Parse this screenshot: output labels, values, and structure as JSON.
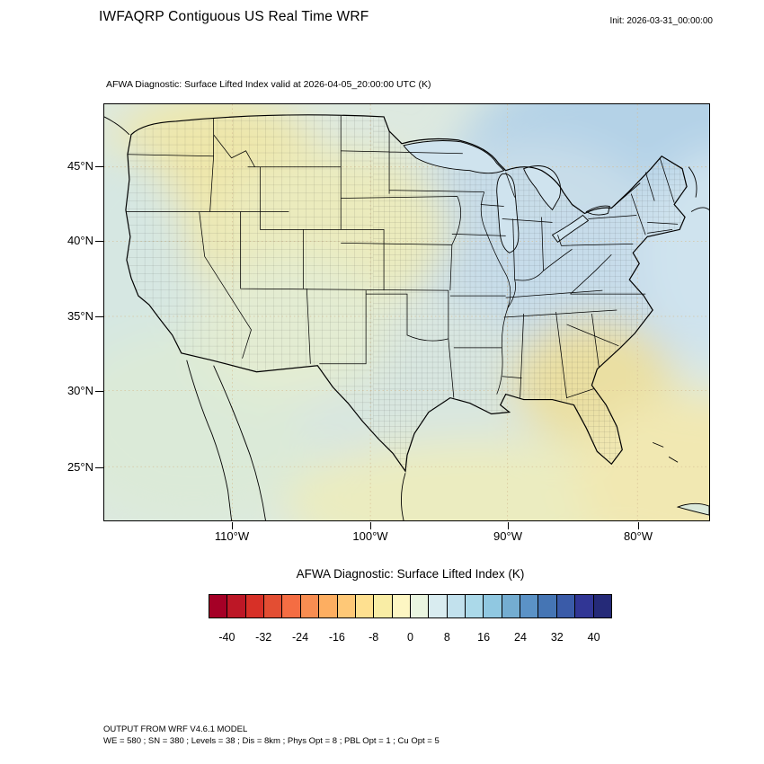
{
  "header": {
    "title": "IWFAQRP Contiguous US Real Time WRF",
    "init_label": "Init: 2026-03-31_00:00:00"
  },
  "map": {
    "subtitle": "AFWA Diagnostic: Surface Lifted Index valid at 2026-04-05_20:00:00 UTC   (K)",
    "y_tick_labels": [
      "45°N",
      "40°N",
      "35°N",
      "30°N",
      "25°N"
    ],
    "x_tick_labels": [
      "110°W",
      "100°W",
      "90°W",
      "80°W"
    ]
  },
  "colorbar": {
    "title": "AFWA Diagnostic: Surface Lifted Index  (K)",
    "tick_labels": [
      "-40",
      "-32",
      "-24",
      "-16",
      "-8",
      "0",
      "8",
      "16",
      "24",
      "32",
      "40"
    ],
    "colors": [
      "#a50026",
      "#bd1726",
      "#d73027",
      "#e34e33",
      "#f46d43",
      "#f88d51",
      "#fdae61",
      "#fec877",
      "#fee090",
      "#f9eda5",
      "#fdf6c3",
      "#eaf5e0",
      "#d9ecf0",
      "#c2e1ed",
      "#abd9e9",
      "#90c8e1",
      "#74add1",
      "#5b92c6",
      "#4575b4",
      "#3a5ba8",
      "#313695",
      "#252a78"
    ]
  },
  "footer": {
    "line1": "OUTPUT FROM WRF V4.6.1 MODEL",
    "line2": "WE = 580 ; SN = 380 ; Levels = 38 ; Dis = 8km ; Phys Opt = 8 ; PBL Opt = 1 ; Cu Opt = 5"
  },
  "chart_data": {
    "type": "heatmap",
    "title": "AFWA Diagnostic: Surface Lifted Index valid at 2026-04-05_20:00:00 UTC (K)",
    "colorbar_title": "AFWA Diagnostic: Surface Lifted Index (K)",
    "units": "K",
    "x_tick_labels": [
      "110°W",
      "100°W",
      "90°W",
      "80°W"
    ],
    "y_tick_labels": [
      "45°N",
      "40°N",
      "35°N",
      "30°N",
      "25°N"
    ],
    "colorbar_ticks": [
      -40,
      -32,
      -24,
      -16,
      -8,
      0,
      8,
      16,
      24,
      32,
      40
    ],
    "value_range": [
      -44,
      44
    ],
    "cell_width_k": 4,
    "legend_position": "bottom",
    "grid": "faint dotted lat/lon graticule",
    "field_summary": [
      {
        "region": "Pacific Northwest / northern Rockies interior",
        "approx_value_k": -2
      },
      {
        "region": "California coast",
        "approx_value_k": 2
      },
      {
        "region": "Central and northern Plains",
        "approx_value_k": 0
      },
      {
        "region": "Upper Midwest / Great Lakes",
        "approx_value_k": 8
      },
      {
        "region": "Ohio Valley / Mid-Atlantic",
        "approx_value_k": 8
      },
      {
        "region": "Northeast / western Atlantic",
        "approx_value_k": 12
      },
      {
        "region": "Texas / western Gulf coast",
        "approx_value_k": 4
      },
      {
        "region": "Southeast (GA / AL / FL)",
        "approx_value_k": -2
      },
      {
        "region": "Gulf of Mexico / far southeast corner",
        "approx_value_k": -4
      }
    ]
  }
}
